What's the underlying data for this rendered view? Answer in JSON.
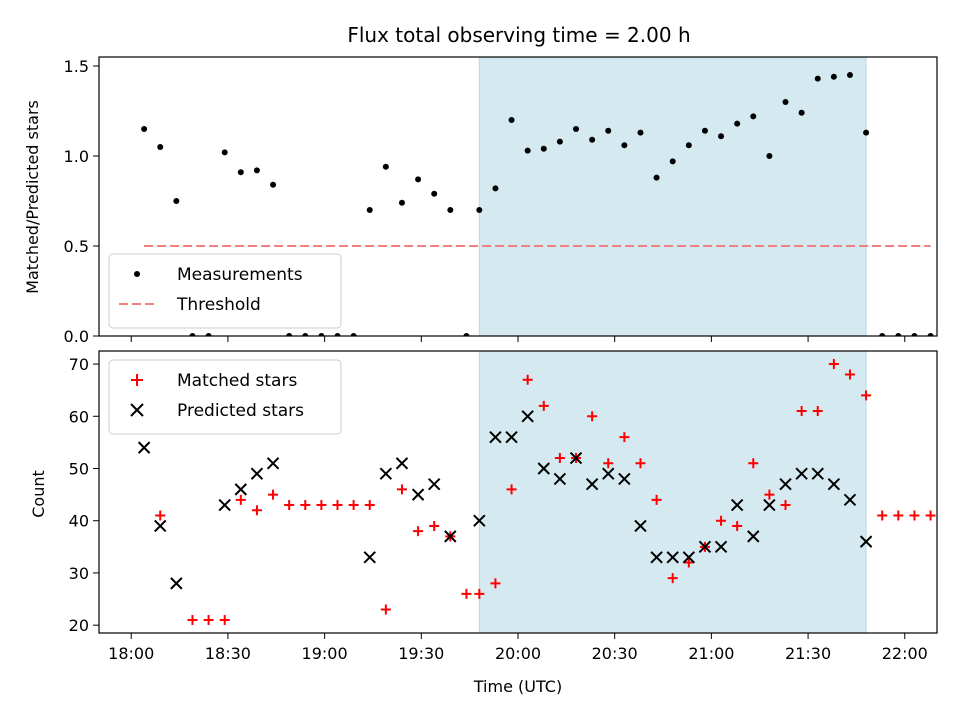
{
  "chart_data": [
    {
      "type": "scatter",
      "title": "Flux total observing time = 2.00 h",
      "xlabel": "",
      "ylabel": "Matched/Predicted stars",
      "ylim": [
        0,
        1.55
      ],
      "yticks": [
        0.0,
        0.5,
        1.0,
        1.5
      ],
      "ytick_labels": [
        "0.0",
        "0.5",
        "1.0",
        "1.5"
      ],
      "xlim_min": [
        -10,
        250
      ],
      "xticks_min": [
        0,
        30,
        60,
        90,
        120,
        150,
        180,
        210,
        240
      ],
      "shaded_span_min": [
        108,
        228
      ],
      "shade_color": "#d4eaf0",
      "legend_position": "lower left",
      "series": [
        {
          "name": "Measurements",
          "marker": "dot",
          "color": "#000000",
          "x": [
            4,
            9,
            14,
            19,
            24,
            29,
            34,
            39,
            44,
            49,
            54,
            59,
            64,
            69,
            74,
            79,
            84,
            89,
            94,
            99,
            104,
            108,
            113,
            118,
            123,
            128,
            133,
            138,
            143,
            148,
            153,
            158,
            163,
            168,
            173,
            178,
            183,
            188,
            193,
            198,
            203,
            208,
            213,
            218,
            223,
            228,
            233,
            238,
            243,
            248
          ],
          "y": [
            1.15,
            1.05,
            0.75,
            0,
            0,
            1.02,
            0.91,
            0.92,
            0.84,
            0,
            0,
            0,
            0,
            0,
            0.7,
            0.94,
            0.74,
            0.87,
            0.79,
            0.7,
            0,
            0.7,
            0.82,
            1.2,
            1.03,
            1.04,
            1.08,
            1.15,
            1.09,
            1.14,
            1.06,
            1.13,
            0.88,
            0.97,
            1.06,
            1.14,
            1.11,
            1.18,
            1.22,
            1.0,
            1.3,
            1.24,
            1.43,
            1.44,
            1.45,
            1.13,
            0,
            0,
            0,
            0
          ]
        },
        {
          "name": "Threshold",
          "style": "dashed",
          "color": "#f08080",
          "x": [
            4,
            248
          ],
          "y": [
            0.5,
            0.5
          ]
        }
      ]
    },
    {
      "type": "scatter",
      "title": "",
      "xlabel": "Time (UTC)",
      "ylabel": "Count",
      "ylim": [
        18.5,
        72.5
      ],
      "yticks": [
        20,
        30,
        40,
        50,
        60,
        70
      ],
      "ytick_labels": [
        "20",
        "30",
        "40",
        "50",
        "60",
        "70"
      ],
      "xlim_min": [
        -10,
        250
      ],
      "xticks_min": [
        0,
        30,
        60,
        90,
        120,
        150,
        180,
        210,
        240
      ],
      "xtick_labels": [
        "18:00",
        "18:30",
        "19:00",
        "19:30",
        "20:00",
        "20:30",
        "21:00",
        "21:30",
        "22:00"
      ],
      "shaded_span_min": [
        108,
        228
      ],
      "shade_color": "#d4eaf0",
      "legend_position": "upper left",
      "series": [
        {
          "name": "Matched stars",
          "marker": "plus",
          "color": "#ff0000",
          "x": [
            4,
            9,
            14,
            19,
            24,
            29,
            34,
            39,
            44,
            49,
            54,
            59,
            64,
            69,
            74,
            79,
            84,
            89,
            94,
            99,
            104,
            108,
            113,
            118,
            123,
            128,
            133,
            138,
            143,
            148,
            153,
            158,
            163,
            168,
            173,
            178,
            183,
            188,
            193,
            198,
            203,
            208,
            213,
            218,
            223,
            228,
            233,
            238,
            243,
            248
          ],
          "y": [
            null,
            41,
            null,
            21,
            21,
            21,
            44,
            42,
            45,
            43,
            43,
            43,
            43,
            43,
            43,
            23,
            46,
            38,
            39,
            37,
            26,
            26,
            28,
            46,
            67,
            62,
            52,
            52,
            60,
            51,
            56,
            51,
            44,
            29,
            32,
            35,
            40,
            39,
            51,
            45,
            43,
            61,
            61,
            70,
            68,
            64,
            41,
            41,
            41,
            41
          ]
        },
        {
          "name": "Predicted stars",
          "marker": "x",
          "color": "#000000",
          "x": [
            4,
            9,
            14,
            29,
            34,
            39,
            44,
            74,
            79,
            84,
            89,
            94,
            99,
            108,
            113,
            118,
            123,
            128,
            133,
            138,
            143,
            148,
            153,
            158,
            163,
            168,
            173,
            178,
            183,
            188,
            193,
            198,
            203,
            208,
            213,
            218,
            223,
            228
          ],
          "y": [
            54,
            39,
            28,
            43,
            46,
            49,
            51,
            33,
            49,
            51,
            45,
            47,
            37,
            40,
            56,
            56,
            60,
            50,
            48,
            52,
            47,
            49,
            48,
            39,
            33,
            33,
            33,
            35,
            35,
            43,
            37,
            43,
            47,
            49,
            49,
            47,
            44,
            36
          ]
        }
      ]
    }
  ]
}
